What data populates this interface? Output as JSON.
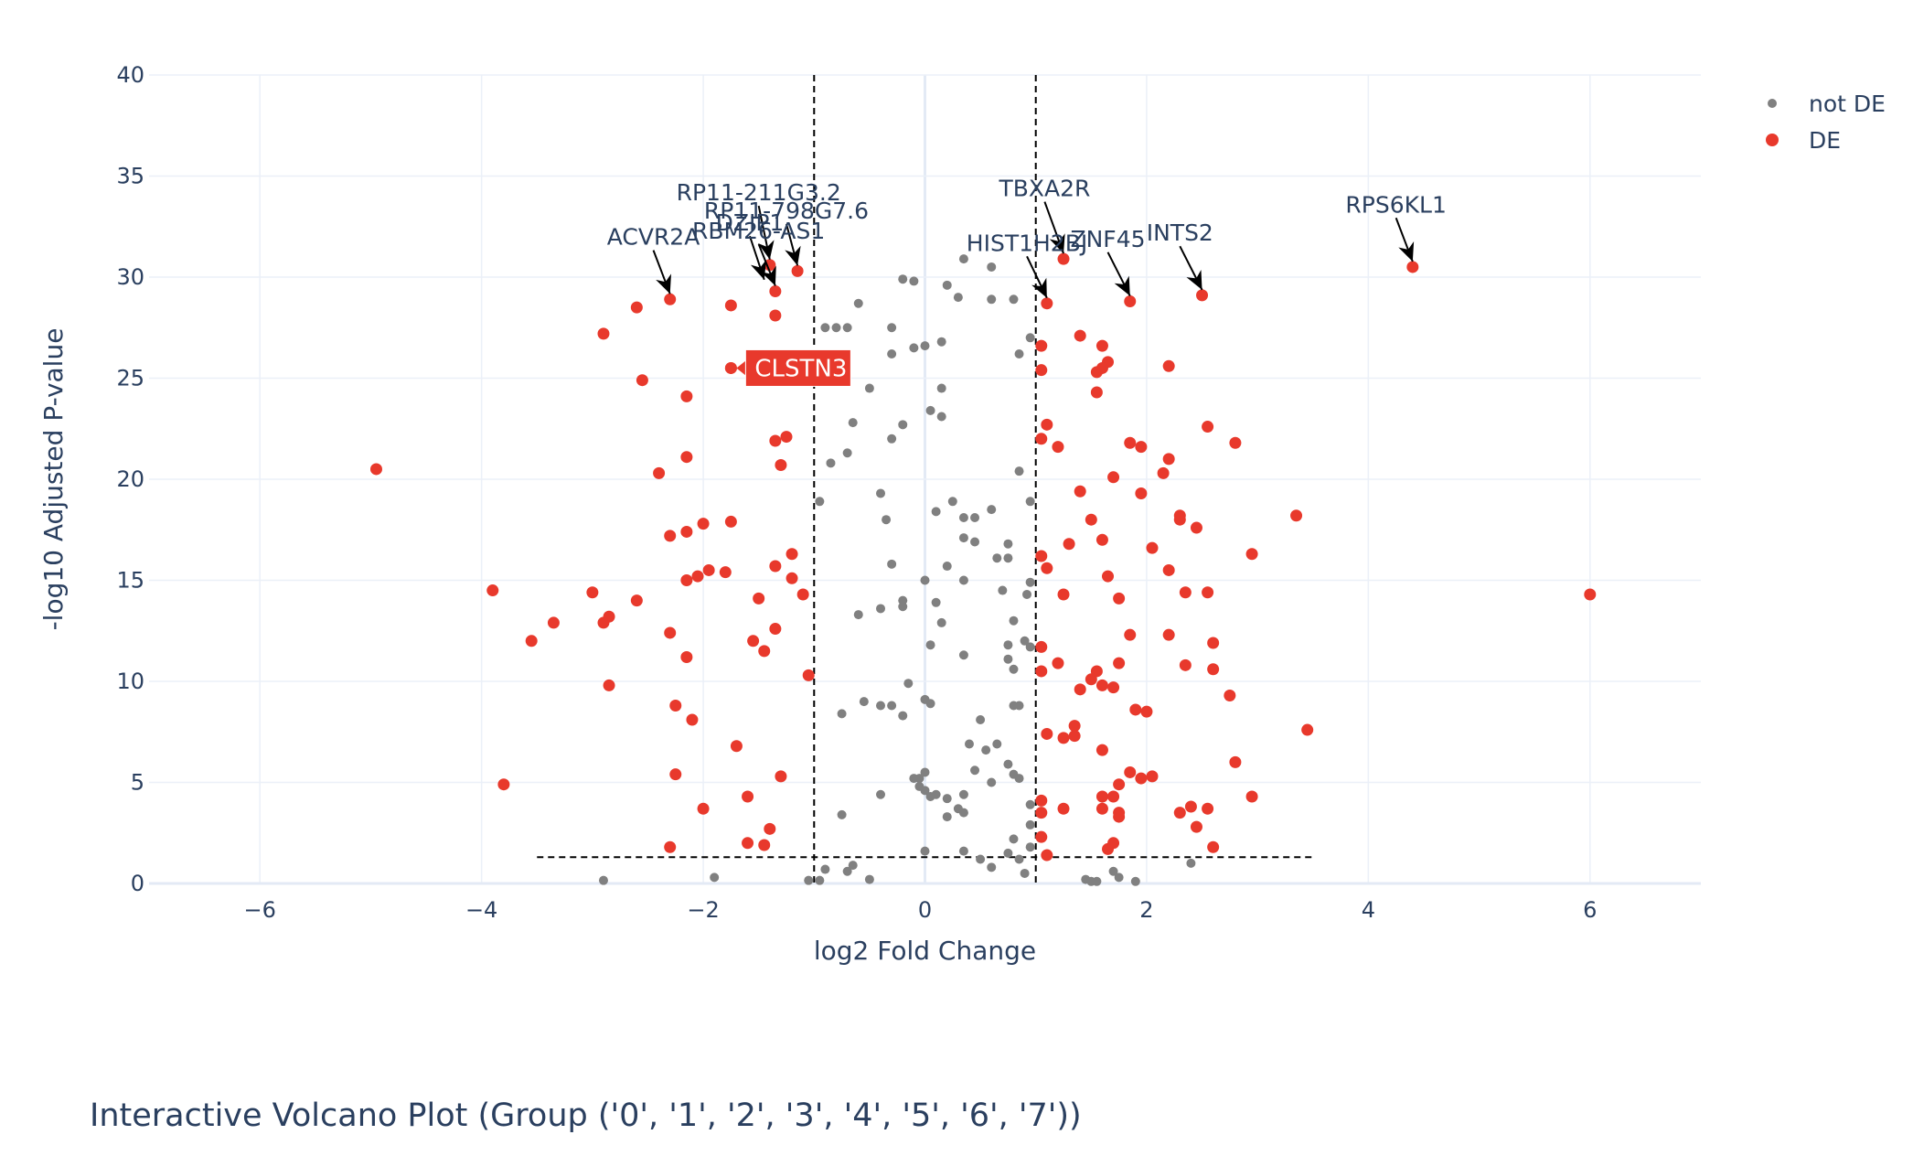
{
  "chart_data": {
    "type": "scatter",
    "title": "Interactive Volcano Plot (Group ('0', '1', '2', '3', '4', '5', '6', '7'))",
    "xlabel": "log2 Fold Change",
    "ylabel": "-log10 Adjusted P-value",
    "xlim": [
      -7,
      7
    ],
    "ylim": [
      0,
      40
    ],
    "xticks": [
      -6,
      -4,
      -2,
      0,
      2,
      4,
      6
    ],
    "xtick_labels": [
      "−6",
      "−4",
      "−2",
      "0",
      "2",
      "4",
      "6"
    ],
    "yticks": [
      0,
      5,
      10,
      15,
      20,
      25,
      30,
      35,
      40
    ],
    "ytick_labels": [
      "0",
      "5",
      "10",
      "15",
      "20",
      "25",
      "30",
      "35",
      "40"
    ],
    "grid": true,
    "legend_position": "top-right",
    "colors": {
      "not_de": "#808080",
      "de": "#e8392c",
      "grid": "#ebf0f8",
      "zeroline": "#e3eaf5",
      "text": "#2a3f5f"
    },
    "thresholds": {
      "fc": [
        -1,
        1
      ],
      "pval": 1.3
    },
    "series": [
      {
        "name": "not DE",
        "color": "#808080",
        "points": [
          [
            -0.6,
            28.7
          ],
          [
            -0.9,
            27.5
          ],
          [
            -0.8,
            27.5
          ],
          [
            -0.7,
            27.5
          ],
          [
            -0.3,
            27.5
          ],
          [
            0.2,
            29.6
          ],
          [
            0.3,
            29.0
          ],
          [
            0.35,
            30.9
          ],
          [
            0.6,
            30.5
          ],
          [
            0.8,
            28.9
          ],
          [
            -0.2,
            29.9
          ],
          [
            -0.1,
            29.8
          ],
          [
            0.6,
            28.9
          ],
          [
            -0.3,
            26.2
          ],
          [
            -0.1,
            26.5
          ],
          [
            0.0,
            26.6
          ],
          [
            0.15,
            26.8
          ],
          [
            0.85,
            26.2
          ],
          [
            0.95,
            27.0
          ],
          [
            -0.5,
            24.5
          ],
          [
            0.15,
            24.5
          ],
          [
            -0.65,
            22.8
          ],
          [
            -0.2,
            22.7
          ],
          [
            -0.3,
            22.0
          ],
          [
            0.05,
            23.4
          ],
          [
            0.15,
            23.1
          ],
          [
            -0.7,
            21.3
          ],
          [
            -0.85,
            20.8
          ],
          [
            -0.95,
            18.9
          ],
          [
            -0.4,
            19.3
          ],
          [
            -0.35,
            18.0
          ],
          [
            0.1,
            18.4
          ],
          [
            0.25,
            18.9
          ],
          [
            0.35,
            18.1
          ],
          [
            0.45,
            18.1
          ],
          [
            0.6,
            18.5
          ],
          [
            0.85,
            20.4
          ],
          [
            0.95,
            18.9
          ],
          [
            0.35,
            17.1
          ],
          [
            0.45,
            16.9
          ],
          [
            0.75,
            16.8
          ],
          [
            0.65,
            16.1
          ],
          [
            0.75,
            16.1
          ],
          [
            -0.3,
            15.8
          ],
          [
            0.0,
            15.0
          ],
          [
            0.2,
            15.7
          ],
          [
            0.35,
            15.0
          ],
          [
            0.7,
            14.5
          ],
          [
            0.95,
            14.9
          ],
          [
            -0.6,
            13.3
          ],
          [
            -0.4,
            13.6
          ],
          [
            -0.2,
            14.0
          ],
          [
            -0.2,
            13.7
          ],
          [
            0.1,
            13.9
          ],
          [
            0.05,
            11.8
          ],
          [
            0.15,
            12.9
          ],
          [
            0.35,
            11.3
          ],
          [
            0.75,
            11.8
          ],
          [
            0.95,
            11.7
          ],
          [
            0.8,
            10.6
          ],
          [
            0.9,
            12.0
          ],
          [
            0.75,
            11.1
          ],
          [
            0.8,
            13.0
          ],
          [
            0.92,
            14.3
          ],
          [
            -0.55,
            9.0
          ],
          [
            -0.4,
            8.8
          ],
          [
            -0.3,
            8.8
          ],
          [
            -0.2,
            8.3
          ],
          [
            -0.15,
            9.9
          ],
          [
            0.0,
            9.1
          ],
          [
            0.05,
            8.9
          ],
          [
            -0.75,
            8.4
          ],
          [
            0.5,
            8.1
          ],
          [
            0.8,
            8.8
          ],
          [
            0.85,
            8.8
          ],
          [
            0.4,
            6.9
          ],
          [
            0.55,
            6.6
          ],
          [
            0.65,
            6.9
          ],
          [
            0.75,
            5.9
          ],
          [
            0.8,
            5.4
          ],
          [
            0.85,
            5.2
          ],
          [
            0.45,
            5.6
          ],
          [
            0.6,
            5.0
          ],
          [
            0.35,
            4.4
          ],
          [
            0.3,
            3.7
          ],
          [
            -0.1,
            5.2
          ],
          [
            -0.05,
            5.2
          ],
          [
            0.0,
            5.5
          ],
          [
            0.0,
            4.6
          ],
          [
            0.05,
            4.3
          ],
          [
            0.2,
            4.2
          ],
          [
            0.2,
            3.3
          ],
          [
            0.35,
            3.5
          ],
          [
            0.1,
            4.4
          ],
          [
            -0.05,
            4.8
          ],
          [
            0.95,
            3.9
          ],
          [
            0.95,
            2.9
          ],
          [
            0.95,
            1.8
          ],
          [
            0.8,
            2.2
          ],
          [
            0.75,
            1.5
          ],
          [
            0.5,
            1.2
          ],
          [
            -0.4,
            4.4
          ],
          [
            -0.75,
            3.4
          ],
          [
            0.0,
            1.6
          ],
          [
            0.35,
            1.6
          ],
          [
            0.6,
            0.8
          ],
          [
            0.85,
            1.2
          ],
          [
            0.9,
            0.5
          ],
          [
            1.7,
            0.6
          ],
          [
            1.75,
            0.3
          ],
          [
            1.5,
            0.1
          ],
          [
            1.9,
            0.1
          ],
          [
            2.4,
            1.0
          ],
          [
            1.45,
            0.2
          ],
          [
            1.55,
            0.1
          ],
          [
            -0.9,
            0.7
          ],
          [
            -0.65,
            0.9
          ],
          [
            -0.5,
            0.2
          ],
          [
            -0.7,
            0.6
          ],
          [
            -0.95,
            0.15
          ],
          [
            -2.9,
            0.15
          ],
          [
            -1.9,
            0.3
          ],
          [
            -1.05,
            0.15
          ]
        ]
      },
      {
        "name": "DE",
        "color": "#e8392c",
        "points": [
          [
            -2.3,
            28.9
          ],
          [
            -2.6,
            28.5
          ],
          [
            -1.75,
            28.6
          ],
          [
            -1.35,
            29.3
          ],
          [
            -1.4,
            30.6
          ],
          [
            -1.15,
            30.3
          ],
          [
            -1.35,
            28.1
          ],
          [
            -2.9,
            27.2
          ],
          [
            -2.55,
            24.9
          ],
          [
            -2.15,
            24.1
          ],
          [
            -1.75,
            25.5
          ],
          [
            -1.35,
            21.9
          ],
          [
            -1.25,
            22.1
          ],
          [
            -2.4,
            20.3
          ],
          [
            -2.15,
            21.1
          ],
          [
            -1.3,
            20.7
          ],
          [
            -4.95,
            20.5
          ],
          [
            -2.3,
            17.2
          ],
          [
            -2.15,
            17.4
          ],
          [
            -2.0,
            17.8
          ],
          [
            -1.75,
            17.9
          ],
          [
            -2.15,
            15.0
          ],
          [
            -2.05,
            15.2
          ],
          [
            -1.95,
            15.5
          ],
          [
            -1.8,
            15.4
          ],
          [
            -1.35,
            15.7
          ],
          [
            -1.2,
            16.3
          ],
          [
            -1.2,
            15.1
          ],
          [
            -3.9,
            14.5
          ],
          [
            -3.0,
            14.4
          ],
          [
            -2.9,
            12.9
          ],
          [
            -2.85,
            13.2
          ],
          [
            -2.6,
            14.0
          ],
          [
            -2.3,
            12.4
          ],
          [
            -1.5,
            14.1
          ],
          [
            -1.35,
            12.6
          ],
          [
            -1.1,
            14.3
          ],
          [
            -1.55,
            12.0
          ],
          [
            -1.45,
            11.5
          ],
          [
            -3.55,
            12.0
          ],
          [
            -3.35,
            12.9
          ],
          [
            -2.15,
            11.2
          ],
          [
            -2.85,
            9.8
          ],
          [
            -1.05,
            10.3
          ],
          [
            -2.25,
            8.8
          ],
          [
            -2.1,
            8.1
          ],
          [
            -1.7,
            6.8
          ],
          [
            -2.25,
            5.4
          ],
          [
            -1.3,
            5.3
          ],
          [
            -3.8,
            4.9
          ],
          [
            -1.6,
            4.3
          ],
          [
            -1.4,
            2.7
          ],
          [
            -2.0,
            3.7
          ],
          [
            -1.6,
            2.0
          ],
          [
            -1.45,
            1.9
          ],
          [
            -2.3,
            1.8
          ],
          [
            1.1,
            28.7
          ],
          [
            1.25,
            30.9
          ],
          [
            1.6,
            26.6
          ],
          [
            1.85,
            28.8
          ],
          [
            2.5,
            29.1
          ],
          [
            4.4,
            30.5
          ],
          [
            1.4,
            27.1
          ],
          [
            1.05,
            26.6
          ],
          [
            1.05,
            25.4
          ],
          [
            1.55,
            25.3
          ],
          [
            1.65,
            25.8
          ],
          [
            1.6,
            25.5
          ],
          [
            2.2,
            25.6
          ],
          [
            1.55,
            24.3
          ],
          [
            1.1,
            22.7
          ],
          [
            1.05,
            22.0
          ],
          [
            1.2,
            21.6
          ],
          [
            1.85,
            21.8
          ],
          [
            1.95,
            21.6
          ],
          [
            2.55,
            22.6
          ],
          [
            2.8,
            21.8
          ],
          [
            2.2,
            21.0
          ],
          [
            2.15,
            20.3
          ],
          [
            1.7,
            20.1
          ],
          [
            1.4,
            19.4
          ],
          [
            1.95,
            19.3
          ],
          [
            3.35,
            18.2
          ],
          [
            2.3,
            18.2
          ],
          [
            2.3,
            18.0
          ],
          [
            2.45,
            17.6
          ],
          [
            1.5,
            18.0
          ],
          [
            1.3,
            16.8
          ],
          [
            1.6,
            17.0
          ],
          [
            2.05,
            16.6
          ],
          [
            2.95,
            16.3
          ],
          [
            1.05,
            16.2
          ],
          [
            1.1,
            15.6
          ],
          [
            1.65,
            15.2
          ],
          [
            2.2,
            15.5
          ],
          [
            1.25,
            14.3
          ],
          [
            1.75,
            14.1
          ],
          [
            2.35,
            14.4
          ],
          [
            2.55,
            14.4
          ],
          [
            6.0,
            14.3
          ],
          [
            1.85,
            12.3
          ],
          [
            2.2,
            12.3
          ],
          [
            2.6,
            11.9
          ],
          [
            1.05,
            11.7
          ],
          [
            1.05,
            10.5
          ],
          [
            1.2,
            10.9
          ],
          [
            1.5,
            10.1
          ],
          [
            1.55,
            10.5
          ],
          [
            1.75,
            10.9
          ],
          [
            2.35,
            10.8
          ],
          [
            2.6,
            10.6
          ],
          [
            1.4,
            9.6
          ],
          [
            1.6,
            9.8
          ],
          [
            1.7,
            9.7
          ],
          [
            1.9,
            8.6
          ],
          [
            2.0,
            8.5
          ],
          [
            2.75,
            9.3
          ],
          [
            3.45,
            7.6
          ],
          [
            1.1,
            7.4
          ],
          [
            1.25,
            7.2
          ],
          [
            1.35,
            7.3
          ],
          [
            1.35,
            7.8
          ],
          [
            1.6,
            6.6
          ],
          [
            2.8,
            6.0
          ],
          [
            1.85,
            5.5
          ],
          [
            2.05,
            5.3
          ],
          [
            1.75,
            4.9
          ],
          [
            1.95,
            5.2
          ],
          [
            1.6,
            4.3
          ],
          [
            1.7,
            4.3
          ],
          [
            2.3,
            3.5
          ],
          [
            2.4,
            3.8
          ],
          [
            2.95,
            4.3
          ],
          [
            1.05,
            4.1
          ],
          [
            1.05,
            3.5
          ],
          [
            1.25,
            3.7
          ],
          [
            1.6,
            3.7
          ],
          [
            1.75,
            3.3
          ],
          [
            1.75,
            3.5
          ],
          [
            2.45,
            2.8
          ],
          [
            2.55,
            3.7
          ],
          [
            1.05,
            2.3
          ],
          [
            1.1,
            1.4
          ],
          [
            1.65,
            1.7
          ],
          [
            1.7,
            2.0
          ],
          [
            2.6,
            1.8
          ]
        ]
      }
    ],
    "annotations": [
      {
        "text": "ACVR2A",
        "x": -2.3,
        "y": 28.9,
        "tx": -2.45,
        "ty": 31.6
      },
      {
        "text": "RP11-211G3.2",
        "x": -1.4,
        "y": 30.6,
        "tx": -1.5,
        "ty": 33.8
      },
      {
        "text": "RP11-798G7.6",
        "x": -1.15,
        "y": 30.3,
        "tx": -1.25,
        "ty": 32.9
      },
      {
        "text": "DZIP1",
        "x": -1.45,
        "y": 29.6,
        "tx": -1.58,
        "ty": 32.3
      },
      {
        "text": "RBM26-AS1",
        "x": -1.35,
        "y": 29.3,
        "tx": -1.5,
        "ty": 31.9
      },
      {
        "text": "TBXA2R",
        "x": 1.25,
        "y": 30.9,
        "tx": 1.08,
        "ty": 34.0
      },
      {
        "text": "HIST1H2BJ",
        "x": 1.1,
        "y": 28.7,
        "tx": 0.92,
        "ty": 31.3
      },
      {
        "text": "ZNF45",
        "x": 1.85,
        "y": 28.8,
        "tx": 1.65,
        "ty": 31.5
      },
      {
        "text": "INTS2",
        "x": 2.5,
        "y": 29.1,
        "tx": 2.3,
        "ty": 31.8
      },
      {
        "text": "RPS6KL1",
        "x": 4.4,
        "y": 30.5,
        "tx": 4.25,
        "ty": 33.2
      }
    ],
    "hover_label": {
      "text": "CLSTN3",
      "x": -1.75,
      "y": 25.5
    }
  },
  "legend": {
    "items": [
      {
        "label": "not DE",
        "color": "#808080"
      },
      {
        "label": "DE",
        "color": "#e8392c"
      }
    ]
  }
}
